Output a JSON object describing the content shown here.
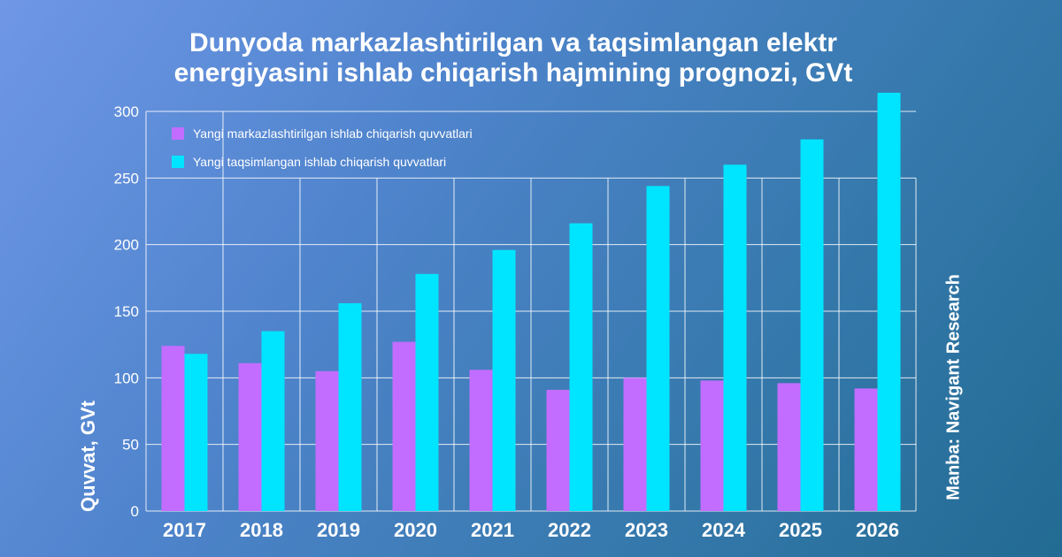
{
  "title_lines": [
    "Dunyoda markazlashtirilgan va taqsimlangan elektr",
    "energiyasini ishlab chiqarish hajmining prognozi, GVt"
  ],
  "source": "Manba: Navigant Research",
  "chart_data": {
    "type": "bar",
    "ylabel": "Quvvat, GVt",
    "ylim": [
      0,
      300
    ],
    "yticks": [
      0,
      50,
      100,
      150,
      200,
      250,
      300
    ],
    "grid": true,
    "legend_position": "top-left",
    "categories": [
      "2017",
      "2018",
      "2019",
      "2020",
      "2021",
      "2022",
      "2023",
      "2024",
      "2025",
      "2026"
    ],
    "series": [
      {
        "name": "Yangi markazlashtirilgan ishlab chiqarish quvvatlari",
        "color": "#c26dff",
        "values": [
          124,
          111,
          105,
          127,
          106,
          91,
          100,
          98,
          96,
          92
        ]
      },
      {
        "name": "Yangi taqsimlangan ishlab chiqarish quvvatlari",
        "color": "#00e5ff",
        "values": [
          118,
          135,
          156,
          178,
          196,
          216,
          244,
          260,
          279,
          314
        ]
      }
    ]
  }
}
